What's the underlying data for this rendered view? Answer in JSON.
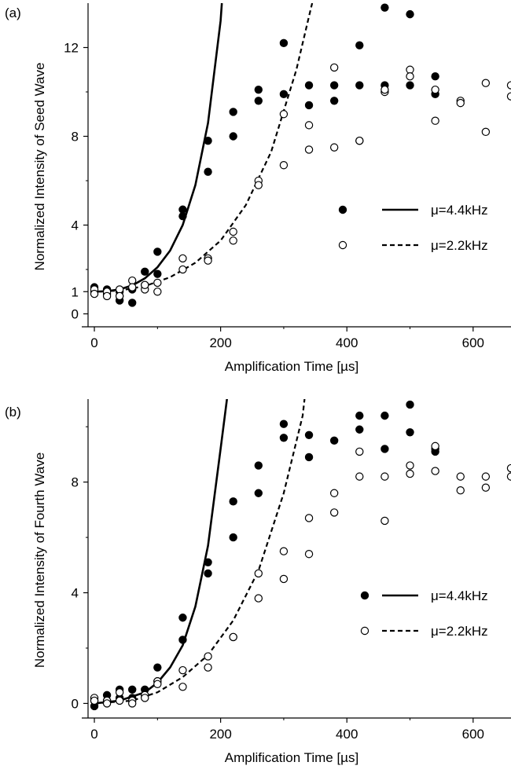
{
  "chart_data": [
    {
      "type": "scatter",
      "panel_label": "(a)",
      "xlabel": "Amplification Time [µs]",
      "ylabel": "Normalized Intensity of Seed Wave",
      "xlim": [
        -10,
        660
      ],
      "ylim": [
        -0.3,
        14
      ],
      "xticks": [
        0,
        200,
        400,
        600
      ],
      "yticks": [
        0,
        1,
        4,
        8,
        12
      ],
      "grid": false,
      "legend_position": "right",
      "series": [
        {
          "name": "μ=4.4kHz",
          "marker": "filled-circle",
          "line": "solid",
          "points": [
            [
              0,
              1.2
            ],
            [
              0,
              1.0
            ],
            [
              20,
              1.1
            ],
            [
              20,
              0.9
            ],
            [
              40,
              0.8
            ],
            [
              40,
              0.6
            ],
            [
              40,
              1.0
            ],
            [
              60,
              0.5
            ],
            [
              60,
              1.1
            ],
            [
              80,
              1.3
            ],
            [
              80,
              1.9
            ],
            [
              100,
              2.8
            ],
            [
              100,
              1.8
            ],
            [
              140,
              4.7
            ],
            [
              140,
              4.4
            ],
            [
              180,
              7.8
            ],
            [
              180,
              6.4
            ],
            [
              220,
              9.1
            ],
            [
              220,
              8.0
            ],
            [
              260,
              10.1
            ],
            [
              260,
              9.6
            ],
            [
              300,
              12.2
            ],
            [
              300,
              9.9
            ],
            [
              340,
              10.3
            ],
            [
              340,
              9.4
            ],
            [
              380,
              10.3
            ],
            [
              380,
              9.6
            ],
            [
              420,
              12.1
            ],
            [
              420,
              10.3
            ],
            [
              460,
              13.8
            ],
            [
              460,
              10.3
            ],
            [
              500,
              13.5
            ],
            [
              500,
              10.3
            ],
            [
              540,
              10.7
            ],
            [
              540,
              9.9
            ]
          ],
          "curve": [
            [
              0,
              1.0
            ],
            [
              20,
              1.02
            ],
            [
              40,
              1.1
            ],
            [
              60,
              1.28
            ],
            [
              80,
              1.6
            ],
            [
              100,
              2.1
            ],
            [
              120,
              2.85
            ],
            [
              140,
              4.0
            ],
            [
              160,
              5.8
            ],
            [
              180,
              8.6
            ],
            [
              200,
              13.2
            ],
            [
              202,
              14.0
            ]
          ]
        },
        {
          "name": "μ=2.2kHz",
          "marker": "open-circle",
          "line": "dashed",
          "points": [
            [
              0,
              1.1
            ],
            [
              0,
              0.9
            ],
            [
              20,
              1.0
            ],
            [
              20,
              0.8
            ],
            [
              40,
              1.1
            ],
            [
              40,
              0.8
            ],
            [
              60,
              1.5
            ],
            [
              60,
              1.2
            ],
            [
              80,
              1.1
            ],
            [
              80,
              1.3
            ],
            [
              100,
              1.4
            ],
            [
              100,
              1.0
            ],
            [
              140,
              2.5
            ],
            [
              140,
              2.0
            ],
            [
              180,
              2.5
            ],
            [
              180,
              2.4
            ],
            [
              220,
              3.7
            ],
            [
              220,
              3.3
            ],
            [
              260,
              6.0
            ],
            [
              260,
              5.8
            ],
            [
              300,
              9.0
            ],
            [
              300,
              6.7
            ],
            [
              340,
              8.5
            ],
            [
              340,
              7.4
            ],
            [
              380,
              11.1
            ],
            [
              380,
              7.5
            ],
            [
              420,
              7.8
            ],
            [
              420,
              7.8
            ],
            [
              460,
              10.0
            ],
            [
              460,
              10.1
            ],
            [
              500,
              11.0
            ],
            [
              500,
              10.7
            ],
            [
              540,
              10.1
            ],
            [
              540,
              8.7
            ],
            [
              580,
              9.6
            ],
            [
              580,
              9.5
            ],
            [
              620,
              10.4
            ],
            [
              620,
              8.2
            ],
            [
              660,
              10.3
            ],
            [
              660,
              9.8
            ]
          ],
          "curve": [
            [
              0,
              1.0
            ],
            [
              40,
              1.05
            ],
            [
              80,
              1.25
            ],
            [
              120,
              1.65
            ],
            [
              160,
              2.3
            ],
            [
              200,
              3.3
            ],
            [
              240,
              4.9
            ],
            [
              280,
              7.3
            ],
            [
              320,
              11.0
            ],
            [
              340,
              13.4
            ],
            [
              345,
              14.0
            ]
          ]
        }
      ]
    },
    {
      "type": "scatter",
      "panel_label": "(b)",
      "xlabel": "Amplification Time [µs]",
      "ylabel": "Normalized Intensity of Fourth Wave",
      "xlim": [
        -10,
        660
      ],
      "ylim": [
        -0.3,
        11
      ],
      "xticks": [
        0,
        200,
        400,
        600
      ],
      "yticks": [
        0,
        4,
        8
      ],
      "grid": false,
      "legend_position": "right",
      "series": [
        {
          "name": "μ=4.4kHz",
          "marker": "filled-circle",
          "line": "solid",
          "points": [
            [
              0,
              0.1
            ],
            [
              0,
              -0.1
            ],
            [
              20,
              0.3
            ],
            [
              20,
              0.1
            ],
            [
              40,
              0.5
            ],
            [
              40,
              0.2
            ],
            [
              60,
              0.5
            ],
            [
              60,
              0.2
            ],
            [
              80,
              0.5
            ],
            [
              80,
              0.3
            ],
            [
              100,
              1.3
            ],
            [
              100,
              0.8
            ],
            [
              140,
              3.1
            ],
            [
              140,
              2.3
            ],
            [
              180,
              5.1
            ],
            [
              180,
              4.7
            ],
            [
              220,
              7.3
            ],
            [
              220,
              6.0
            ],
            [
              260,
              8.6
            ],
            [
              260,
              7.6
            ],
            [
              300,
              10.1
            ],
            [
              300,
              9.6
            ],
            [
              340,
              9.7
            ],
            [
              340,
              8.9
            ],
            [
              380,
              9.5
            ],
            [
              420,
              10.4
            ],
            [
              420,
              9.9
            ],
            [
              460,
              10.4
            ],
            [
              460,
              9.2
            ],
            [
              500,
              10.8
            ],
            [
              500,
              9.8
            ],
            [
              540,
              9.2
            ],
            [
              540,
              9.1
            ]
          ],
          "curve": [
            [
              0,
              0.0
            ],
            [
              40,
              0.1
            ],
            [
              80,
              0.4
            ],
            [
              100,
              0.75
            ],
            [
              120,
              1.3
            ],
            [
              140,
              2.1
            ],
            [
              160,
              3.5
            ],
            [
              180,
              5.7
            ],
            [
              200,
              9.2
            ],
            [
              210,
              11.0
            ]
          ]
        },
        {
          "name": "μ=2.2kHz",
          "marker": "open-circle",
          "line": "dashed",
          "points": [
            [
              0,
              0.2
            ],
            [
              0,
              0.1
            ],
            [
              20,
              0.1
            ],
            [
              20,
              0.0
            ],
            [
              40,
              0.4
            ],
            [
              40,
              0.1
            ],
            [
              60,
              0.1
            ],
            [
              60,
              0.0
            ],
            [
              80,
              0.3
            ],
            [
              80,
              0.2
            ],
            [
              100,
              0.8
            ],
            [
              100,
              0.7
            ],
            [
              140,
              1.2
            ],
            [
              140,
              0.6
            ],
            [
              180,
              1.7
            ],
            [
              180,
              1.3
            ],
            [
              220,
              2.4
            ],
            [
              220,
              2.4
            ],
            [
              260,
              4.7
            ],
            [
              260,
              3.8
            ],
            [
              300,
              5.5
            ],
            [
              300,
              4.5
            ],
            [
              340,
              6.7
            ],
            [
              340,
              5.4
            ],
            [
              380,
              7.6
            ],
            [
              380,
              6.9
            ],
            [
              420,
              9.1
            ],
            [
              420,
              8.2
            ],
            [
              460,
              8.2
            ],
            [
              460,
              6.6
            ],
            [
              500,
              8.6
            ],
            [
              500,
              8.3
            ],
            [
              540,
              9.3
            ],
            [
              540,
              8.4
            ],
            [
              580,
              8.2
            ],
            [
              580,
              7.7
            ],
            [
              620,
              8.2
            ],
            [
              620,
              7.8
            ],
            [
              660,
              8.5
            ],
            [
              660,
              8.2
            ]
          ],
          "curve": [
            [
              0,
              0.0
            ],
            [
              60,
              0.1
            ],
            [
              100,
              0.4
            ],
            [
              140,
              0.95
            ],
            [
              180,
              1.75
            ],
            [
              220,
              3.0
            ],
            [
              260,
              4.8
            ],
            [
              300,
              7.6
            ],
            [
              330,
              10.4
            ],
            [
              333,
              11.0
            ]
          ]
        }
      ]
    }
  ]
}
